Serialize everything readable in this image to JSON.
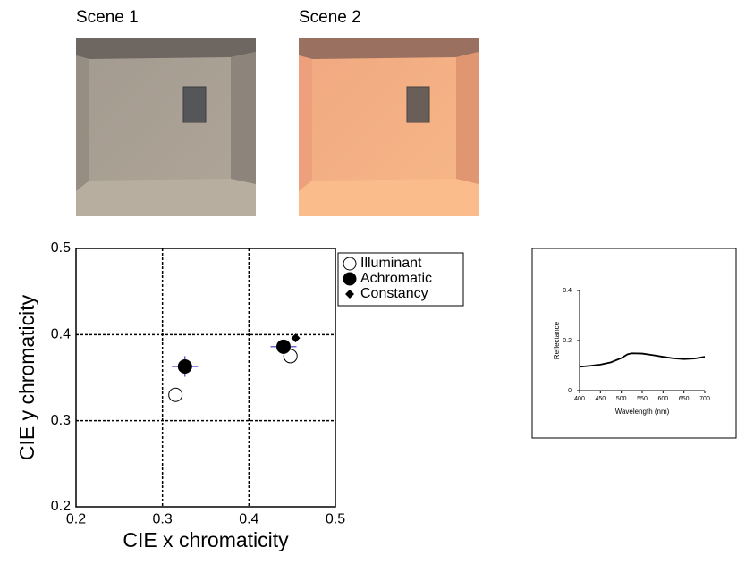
{
  "scenes": [
    {
      "title": "Scene 1"
    },
    {
      "title": "Scene 2"
    }
  ],
  "chart_data": [
    {
      "type": "scatter",
      "xlabel": "CIE x chromaticity",
      "ylabel": "CIE y chromaticity",
      "xlim": [
        0.2,
        0.5
      ],
      "ylim": [
        0.2,
        0.5
      ],
      "xticks": [
        0.2,
        0.3,
        0.4,
        0.5
      ],
      "yticks": [
        0.2,
        0.3,
        0.4,
        0.5
      ],
      "grid": true,
      "legend": "upper right",
      "series": [
        {
          "name": "Illuminant",
          "color": "#000000",
          "marker": "open-circle",
          "x": [
            0.315,
            0.448
          ],
          "values": [
            0.33,
            0.375
          ]
        },
        {
          "name": "Achromatic",
          "color": "#000000",
          "marker": "filled-circle",
          "x": [
            0.326,
            0.44
          ],
          "values": [
            0.363,
            0.386
          ],
          "xerr": [
            0.015,
            0.015
          ],
          "yerr": [
            0.012,
            0.004
          ],
          "error_color": "#3a3ad0"
        },
        {
          "name": "Constancy",
          "color": "#000000",
          "marker": "diamond",
          "x": [
            0.454
          ],
          "values": [
            0.396
          ]
        }
      ]
    },
    {
      "type": "line",
      "xlabel": "Wavelength (nm)",
      "ylabel": "Reflectance",
      "xlim": [
        400,
        700
      ],
      "ylim": [
        0,
        0.4
      ],
      "xticks": [
        400,
        450,
        500,
        550,
        600,
        650,
        700
      ],
      "yticks": [
        0,
        0.2,
        0.4
      ],
      "series": [
        {
          "color": "#000000",
          "x": [
            400,
            425,
            450,
            475,
            500,
            515,
            525,
            550,
            575,
            600,
            625,
            650,
            675,
            700
          ],
          "values": [
            0.095,
            0.099,
            0.104,
            0.113,
            0.13,
            0.145,
            0.149,
            0.148,
            0.142,
            0.135,
            0.129,
            0.126,
            0.128,
            0.135
          ]
        }
      ]
    }
  ]
}
